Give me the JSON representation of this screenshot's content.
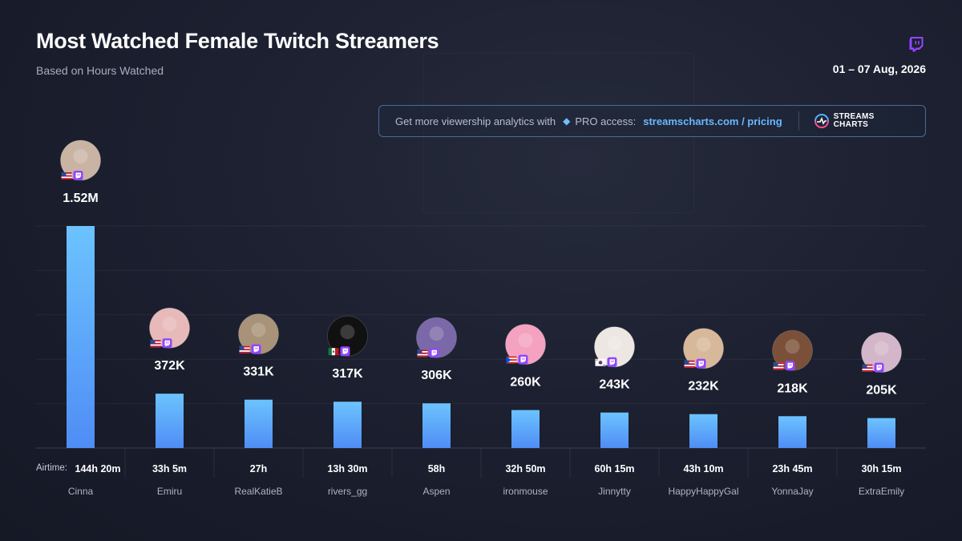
{
  "header": {
    "title": "Most Watched Female Twitch Streamers",
    "subtitle": "Based on Hours Watched",
    "date_range": "01 – 07 Aug, 2026"
  },
  "promo": {
    "text": "Get more viewership analytics with",
    "pro_label": "PRO access:",
    "link": "streamscharts.com / pricing",
    "brand_line1": "STREAMS",
    "brand_line2": "CHARTS"
  },
  "airtime_prefix": "Airtime:",
  "colors": {
    "bar_top": "#6cc3ff",
    "bar_bottom": "#4f8df5",
    "twitch_purple": "#9146ff",
    "background": "#1c2030"
  },
  "chart_data": {
    "type": "bar",
    "categories": [
      "Cinna",
      "Emiru",
      "RealKatieB",
      "rivers_gg",
      "Aspen",
      "ironmouse",
      "Jinnytty",
      "HappyHappyGal",
      "YonnaJay",
      "ExtraEmily"
    ],
    "values": [
      1520000,
      372000,
      331000,
      317000,
      306000,
      260000,
      243000,
      232000,
      218000,
      205000
    ],
    "value_labels": [
      "1.52M",
      "372K",
      "331K",
      "317K",
      "306K",
      "260K",
      "243K",
      "232K",
      "218K",
      "205K"
    ],
    "airtime": [
      "144h 20m",
      "33h 5m",
      "27h",
      "13h 30m",
      "58h",
      "32h 50m",
      "60h 15m",
      "43h 10m",
      "23h 45m",
      "30h 15m"
    ],
    "flags": [
      "us",
      "us",
      "us",
      "mx",
      "us",
      "pr",
      "kr",
      "us",
      "us",
      "us"
    ],
    "avatar_colors": [
      "#c9b4a4",
      "#e7b9b9",
      "#a89278",
      "#111111",
      "#7a68a8",
      "#f4a2c0",
      "#ede7e3",
      "#d8b89a",
      "#7a5038",
      "#d3b6c9"
    ],
    "ylim": [
      0,
      1520000
    ],
    "grid": true,
    "title": "Most Watched Female Twitch Streamers"
  }
}
